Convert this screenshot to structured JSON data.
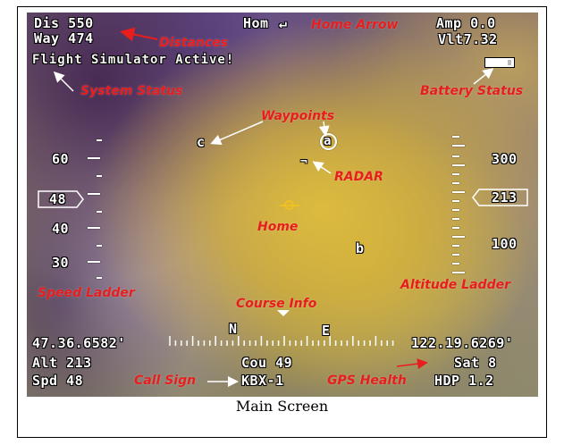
{
  "osd": {
    "distance": "Dis 550",
    "waypoint": "Way 474",
    "home_label": "Hom",
    "home_arrow": "↵",
    "amp": "Amp 0.0",
    "volt": "Vlt7.32",
    "system_status": "Flight Simulator Active!",
    "waypoint_a": "a",
    "waypoint_b": "b",
    "waypoint_c": "c",
    "radar_marker": "¬",
    "speed_ticks": [
      "60",
      "48",
      "40",
      "30"
    ],
    "current_speed": "48",
    "altitude_ticks": [
      "300",
      "213",
      "100"
    ],
    "current_altitude": "213",
    "heading_n": "N",
    "heading_e": "E",
    "latitude": "47.36.6582'",
    "longitude": "122.19.6269'",
    "altitude": "Alt 213",
    "course": "Cou 49",
    "satellites": "Sat 8",
    "speed": "Spd 48",
    "call_sign": "KBX-1",
    "hdop": "HDP 1.2"
  },
  "annotations": {
    "distances": "Distances",
    "home_arrow": "Home Arrow",
    "system_status": "System Status",
    "battery_status": "Battery Status",
    "waypoints": "Waypoints",
    "radar": "RADAR",
    "home": "Home",
    "speed_ladder": "Speed Ladder",
    "altitude_ladder": "Altitude Ladder",
    "course_info": "Course Info",
    "call_sign": "Call Sign",
    "gps_health": "GPS Health"
  },
  "caption": "Main Screen",
  "colors": {
    "annotation": "#e81e1e",
    "osd_text": "#ffffff",
    "home_marker": "#f0c020"
  }
}
